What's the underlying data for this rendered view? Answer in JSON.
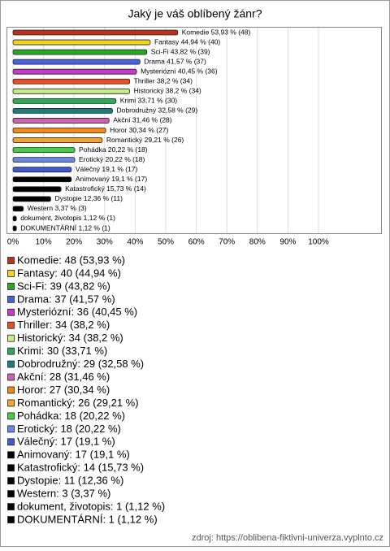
{
  "chart_data": {
    "type": "bar",
    "orientation": "horizontal",
    "title": "Jaký je váš oblíbený žánr?",
    "categories": [
      "Komedie",
      "Fantasy",
      "Sci-Fi",
      "Drama",
      "Mysteriózní",
      "Thriller",
      "Historický",
      "Krimi",
      "Dobrodružný",
      "Akční",
      "Horor",
      "Romantický",
      "Pohádka",
      "Erotický",
      "Válečný",
      "Animovaný",
      "Katastrofický",
      "Dystopie",
      "Western",
      "dokument, životopis",
      "DOKUMENTÁRNÍ"
    ],
    "values": [
      53.93,
      44.94,
      43.82,
      41.57,
      40.45,
      38.2,
      38.2,
      33.71,
      32.58,
      31.46,
      30.34,
      29.21,
      20.22,
      20.22,
      19.1,
      19.1,
      15.73,
      12.36,
      3.37,
      1.12,
      1.12
    ],
    "value_labels": [
      "Komedie 53,93 % (48)",
      "Fantasy 44,94 % (40)",
      "Sci-Fi 43,82 % (39)",
      "Drama 41,57 % (37)",
      "Mysteriózní 40,45 % (36)",
      "Thriller 38,2 % (34)",
      "Historický 38,2 % (34)",
      "Krimi 33,71 % (30)",
      "Dobrodružný 32,58 % (29)",
      "Akční 31,46 % (28)",
      "Horor 30,34 % (27)",
      "Romantický 29,21 % (26)",
      "Pohádka 20,22 % (18)",
      "Erotický 20,22 % (18)",
      "Válečný 19,1 % (17)",
      "Animovaný 19,1 % (17)",
      "Katastrofický 15,73 % (14)",
      "Dystopie 12,36 % (11)",
      "Western 3,37 % (3)",
      "dokument, životopis 1,12 % (1)",
      "DOKUMENTÁRNÍ 1,12 % (1)"
    ],
    "legend_labels": [
      "Komedie: 48 (53,93 %)",
      "Fantasy: 40 (44,94 %)",
      "Sci-Fi: 39 (43,82 %)",
      "Drama: 37 (41,57 %)",
      "Mysteriózní: 36 (40,45 %)",
      "Thriller: 34 (38,2 %)",
      "Historický: 34 (38,2 %)",
      "Krimi: 30 (33,71 %)",
      "Dobrodružný: 29 (32,58 %)",
      "Akční: 28 (31,46 %)",
      "Horor: 27 (30,34 %)",
      "Romantický: 26 (29,21 %)",
      "Pohádka: 18 (20,22 %)",
      "Erotický: 18 (20,22 %)",
      "Válečný: 17 (19,1 %)",
      "Animovaný: 17 (19,1 %)",
      "Katastrofický: 14 (15,73 %)",
      "Dystopie: 11 (12,36 %)",
      "Western: 3 (3,37 %)",
      "dokument, životopis: 1 (1,12 %)",
      "DOKUMENTÁRNÍ: 1 (1,12 %)"
    ],
    "colors": [
      "#b8321e",
      "#f2d321",
      "#2aa52a",
      "#4a63d8",
      "#c43bc8",
      "#e2502a",
      "#c8ea8c",
      "#34a65a",
      "#237a7a",
      "#c766ac",
      "#ee8a22",
      "#eda23a",
      "#4cc84c",
      "#6d88da",
      "#4459c8",
      "#000000",
      "#000000",
      "#000000",
      "#000000",
      "#000000",
      "#000000"
    ],
    "xlim": [
      0,
      100
    ],
    "xticks": [
      {
        "value": 0,
        "label": "0%"
      },
      {
        "value": 10,
        "label": "10%"
      },
      {
        "value": 20,
        "label": "20%"
      },
      {
        "value": 30,
        "label": "30%"
      },
      {
        "value": 40,
        "label": "40%"
      },
      {
        "value": 50,
        "label": "50%"
      },
      {
        "value": 60,
        "label": "60%"
      },
      {
        "value": 70,
        "label": "70%"
      },
      {
        "value": 80,
        "label": "80%"
      },
      {
        "value": 90,
        "label": "90%"
      },
      {
        "value": 100,
        "label": "100%"
      }
    ],
    "grid": true,
    "source": "zdroj: https://oblibena-fiktivni-univerza.vyplnto.cz"
  }
}
